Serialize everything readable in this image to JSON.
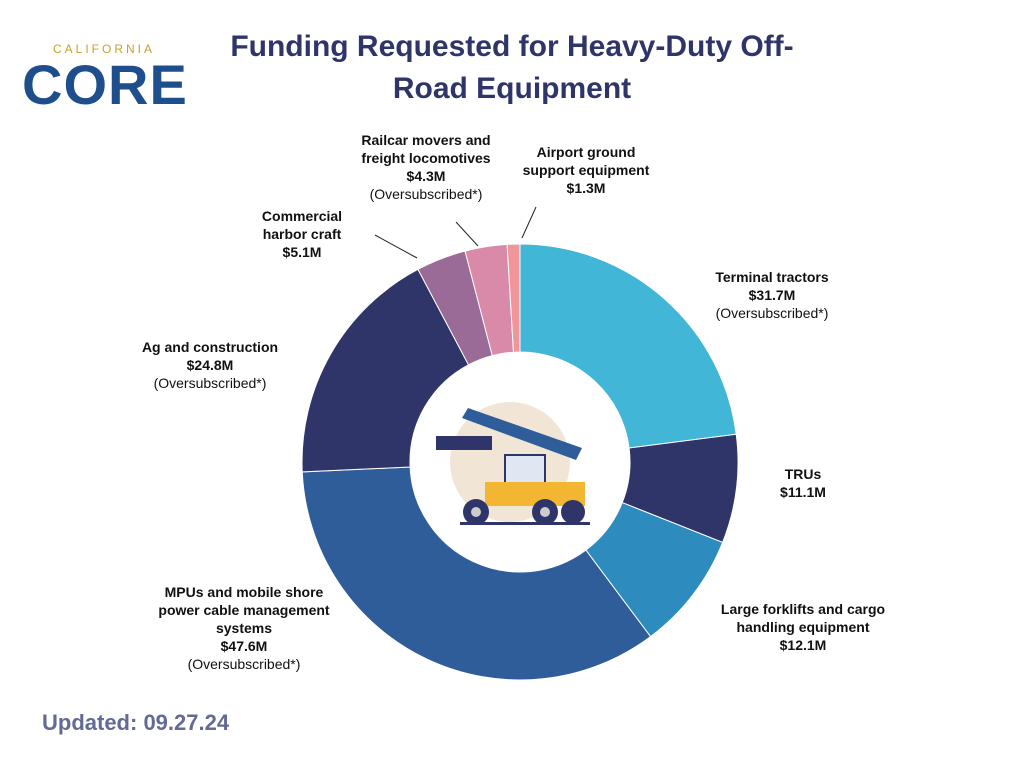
{
  "chart_data": {
    "type": "pie",
    "title": "Funding Requested for Heavy-Duty Off-Road Equipment",
    "categories": [
      "Terminal tractors",
      "TRUs",
      "Large forklifts and cargo handling equipment",
      "MPUs and mobile shore power cable management systems",
      "Ag and construction",
      "Commercial harbor craft",
      "Railcar movers and freight locomotives",
      "Airport ground support equipment"
    ],
    "values": [
      31.7,
      11.1,
      12.1,
      47.6,
      24.8,
      5.1,
      4.3,
      1.3
    ],
    "value_labels": [
      "$31.7M",
      "$11.1M",
      "$12.1M",
      "$47.6M",
      "$24.8M",
      "$5.1M",
      "$4.3M",
      "$1.3M"
    ],
    "value_notes": [
      "(Oversubscribed*)",
      null,
      null,
      "(Oversubscribed*)",
      "(Oversubscribed*)",
      null,
      "(Oversubscribed*)",
      null
    ],
    "colors": [
      "#41b6d6",
      "#2f3469",
      "#2e8bbd",
      "#2f5d99",
      "#2f3469",
      "#9b6b98",
      "#d88aa8",
      "#f0959a"
    ],
    "donut": true
  },
  "logo": {
    "top": "CALIFORNIA",
    "main": "CORE"
  },
  "footer": "Updated: 09.27.24"
}
